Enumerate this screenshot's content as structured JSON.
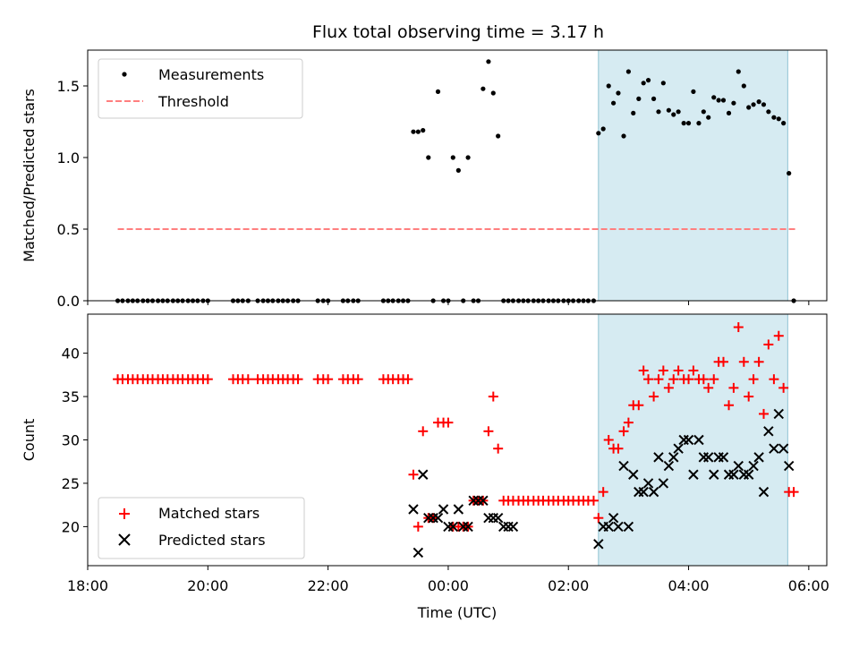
{
  "figure": {
    "title": "Flux total observing time = 3.17 h"
  },
  "colors": {
    "threshold": "#ff7f7f",
    "matched": "#ff0000",
    "predicted": "#000000",
    "measurement": "#000000",
    "highlight": "#add8e6"
  },
  "chart_data": [
    {
      "type": "scatter",
      "title": "Flux total observing time = 3.17 h",
      "xlabel": "",
      "ylabel": "Matched/Predicted stars",
      "xlim": [
        -6.0,
        6.3
      ],
      "ylim": [
        0,
        1.75
      ],
      "x_ticks": [
        -6,
        -4,
        -2,
        0,
        2,
        4,
        6
      ],
      "yticks": [
        0.0,
        0.5,
        1.0,
        1.5
      ],
      "ytick_labels": [
        "0.0",
        "0.5",
        "1.0",
        "1.5"
      ],
      "legend": {
        "position": "upper-left",
        "measurements": "Measurements",
        "threshold": "Threshold"
      },
      "highlight_span": [
        2.5,
        5.65
      ],
      "threshold": {
        "y": 0.5,
        "x": [
          -5.5,
          5.8
        ]
      },
      "series": [
        {
          "name": "Measurements",
          "x": [
            -5.5,
            -5.42,
            -5.33,
            -5.25,
            -5.17,
            -5.08,
            -5.0,
            -4.92,
            -4.83,
            -4.75,
            -4.67,
            -4.58,
            -4.5,
            -4.42,
            -4.33,
            -4.25,
            -4.17,
            -4.08,
            -4.0,
            -3.58,
            -3.5,
            -3.42,
            -3.33,
            -3.17,
            -3.08,
            -3.0,
            -2.92,
            -2.83,
            -2.75,
            -2.67,
            -2.58,
            -2.5,
            -2.17,
            -2.08,
            -2.0,
            -1.75,
            -1.67,
            -1.58,
            -1.5,
            -1.08,
            -1.0,
            -0.92,
            -0.83,
            -0.75,
            -0.67,
            -0.58,
            -0.5,
            -0.42,
            -0.33,
            -0.25,
            -0.17,
            -0.08,
            0.0,
            0.08,
            0.17,
            0.25,
            0.33,
            0.42,
            0.5,
            0.58,
            0.67,
            0.75,
            0.83,
            0.92,
            1.0,
            1.08,
            1.17,
            1.25,
            1.33,
            1.42,
            1.5,
            1.58,
            1.67,
            1.75,
            1.83,
            1.92,
            2.0,
            2.08,
            2.17,
            2.25,
            2.33,
            2.42,
            2.5,
            2.58,
            2.67,
            2.75,
            2.83,
            2.92,
            3.0,
            3.08,
            3.17,
            3.25,
            3.33,
            3.42,
            3.5,
            3.58,
            3.67,
            3.75,
            3.83,
            3.92,
            4.0,
            4.08,
            4.17,
            4.25,
            4.33,
            4.42,
            4.5,
            4.58,
            4.67,
            4.75,
            4.83,
            4.92,
            5.0,
            5.08,
            5.17,
            5.25,
            5.33,
            5.42,
            5.5,
            5.58,
            5.67,
            5.75
          ],
          "y": [
            0,
            0,
            0,
            0,
            0,
            0,
            0,
            0,
            0,
            0,
            0,
            0,
            0,
            0,
            0,
            0,
            0,
            0,
            0,
            0,
            0,
            0,
            0,
            0,
            0,
            0,
            0,
            0,
            0,
            0,
            0,
            0,
            0,
            0,
            0,
            0,
            0,
            0,
            0,
            0,
            0,
            0,
            0,
            0,
            0,
            1.18,
            1.18,
            1.19,
            1.0,
            0,
            1.46,
            0,
            0,
            1.0,
            0.91,
            0,
            1.0,
            0,
            0,
            1.48,
            1.67,
            1.45,
            1.15,
            0,
            0,
            0,
            0,
            0,
            0,
            0,
            0,
            0,
            0,
            0,
            0,
            0,
            0,
            0,
            0,
            0,
            0,
            0,
            1.17,
            1.2,
            1.5,
            1.38,
            1.45,
            1.15,
            1.6,
            1.31,
            1.41,
            1.52,
            1.54,
            1.41,
            1.32,
            1.52,
            1.33,
            1.3,
            1.32,
            1.24,
            1.24,
            1.46,
            1.24,
            1.32,
            1.28,
            1.42,
            1.4,
            1.4,
            1.31,
            1.38,
            1.6,
            1.5,
            1.35,
            1.37,
            1.39,
            1.37,
            1.32,
            1.28,
            1.27,
            1.24,
            0.89,
            0
          ]
        }
      ]
    },
    {
      "type": "scatter",
      "title": "",
      "xlabel": "Time (UTC)",
      "ylabel": "Count",
      "xlim": [
        -6.0,
        6.3
      ],
      "ylim": [
        15.5,
        44.5
      ],
      "x_ticks": [
        -6,
        -4,
        -2,
        0,
        2,
        4,
        6
      ],
      "xtick_labels": [
        "18:00",
        "20:00",
        "22:00",
        "00:00",
        "02:00",
        "04:00",
        "06:00"
      ],
      "yticks": [
        20,
        25,
        30,
        35,
        40
      ],
      "ytick_labels": [
        "20",
        "25",
        "30",
        "35",
        "40"
      ],
      "legend": {
        "position": "lower-left",
        "matched": "Matched stars",
        "predicted": "Predicted stars"
      },
      "highlight_span": [
        2.5,
        5.65
      ],
      "series": [
        {
          "name": "Matched stars",
          "x": [
            -5.5,
            -5.42,
            -5.33,
            -5.25,
            -5.17,
            -5.08,
            -5.0,
            -4.92,
            -4.83,
            -4.75,
            -4.67,
            -4.58,
            -4.5,
            -4.42,
            -4.33,
            -4.25,
            -4.17,
            -4.08,
            -4.0,
            -3.58,
            -3.5,
            -3.42,
            -3.33,
            -3.17,
            -3.08,
            -3.0,
            -2.92,
            -2.83,
            -2.75,
            -2.67,
            -2.58,
            -2.5,
            -2.17,
            -2.08,
            -2.0,
            -1.75,
            -1.67,
            -1.58,
            -1.5,
            -1.08,
            -1.0,
            -0.92,
            -0.83,
            -0.75,
            -0.67,
            -0.58,
            -0.5,
            -0.42,
            -0.33,
            -0.25,
            -0.17,
            -0.08,
            0.0,
            0.08,
            0.17,
            0.25,
            0.33,
            0.42,
            0.5,
            0.58,
            0.67,
            0.75,
            0.83,
            0.92,
            1.0,
            1.08,
            1.17,
            1.25,
            1.33,
            1.42,
            1.5,
            1.58,
            1.67,
            1.75,
            1.83,
            1.92,
            2.0,
            2.08,
            2.17,
            2.25,
            2.33,
            2.42,
            2.5,
            2.58,
            2.67,
            2.75,
            2.83,
            2.92,
            3.0,
            3.08,
            3.17,
            3.25,
            3.33,
            3.42,
            3.5,
            3.58,
            3.67,
            3.75,
            3.83,
            3.92,
            4.0,
            4.08,
            4.17,
            4.25,
            4.33,
            4.42,
            4.5,
            4.58,
            4.67,
            4.75,
            4.83,
            4.92,
            5.0,
            5.08,
            5.17,
            5.25,
            5.33,
            5.42,
            5.5,
            5.58,
            5.67,
            5.75
          ],
          "y": [
            37,
            37,
            37,
            37,
            37,
            37,
            37,
            37,
            37,
            37,
            37,
            37,
            37,
            37,
            37,
            37,
            37,
            37,
            37,
            37,
            37,
            37,
            37,
            37,
            37,
            37,
            37,
            37,
            37,
            37,
            37,
            37,
            37,
            37,
            37,
            37,
            37,
            37,
            37,
            37,
            37,
            37,
            37,
            37,
            37,
            26,
            20,
            31,
            21,
            21,
            32,
            32,
            32,
            20,
            20,
            20,
            20,
            23,
            23,
            23,
            31,
            35,
            29,
            23,
            23,
            23,
            23,
            23,
            23,
            23,
            23,
            23,
            23,
            23,
            23,
            23,
            23,
            23,
            23,
            23,
            23,
            23,
            21,
            24,
            30,
            29,
            29,
            31,
            32,
            34,
            34,
            38,
            37,
            35,
            37,
            38,
            36,
            37,
            38,
            37,
            37,
            38,
            37,
            37,
            36,
            37,
            39,
            39,
            34,
            36,
            43,
            39,
            35,
            37,
            39,
            33,
            41,
            37,
            42,
            36,
            24,
            24
          ]
        },
        {
          "name": "Predicted stars",
          "x": [
            -0.58,
            -0.5,
            -0.42,
            -0.33,
            -0.25,
            -0.17,
            -0.08,
            0.0,
            0.08,
            0.17,
            0.25,
            0.33,
            0.42,
            0.5,
            0.58,
            0.67,
            0.75,
            0.83,
            0.92,
            1.0,
            1.08,
            2.5,
            2.58,
            2.67,
            2.75,
            2.83,
            2.92,
            3.0,
            3.08,
            3.17,
            3.25,
            3.33,
            3.42,
            3.5,
            3.58,
            3.67,
            3.75,
            3.83,
            3.92,
            4.0,
            4.08,
            4.17,
            4.25,
            4.33,
            4.42,
            4.5,
            4.58,
            4.67,
            4.75,
            4.83,
            4.92,
            5.0,
            5.08,
            5.17,
            5.25,
            5.33,
            5.42,
            5.5,
            5.58,
            5.67
          ],
          "y": [
            22,
            17,
            26,
            21,
            21,
            21,
            22,
            20,
            20,
            22,
            20,
            20,
            23,
            23,
            23,
            21,
            21,
            21,
            20,
            20,
            20,
            18,
            20,
            20,
            21,
            20,
            27,
            20,
            26,
            24,
            24,
            25,
            24,
            28,
            25,
            27,
            28,
            29,
            30,
            30,
            26,
            30,
            28,
            28,
            26,
            28,
            28,
            26,
            26,
            27,
            26,
            26,
            27,
            28,
            24,
            31,
            29,
            33,
            29,
            27
          ]
        }
      ]
    }
  ]
}
